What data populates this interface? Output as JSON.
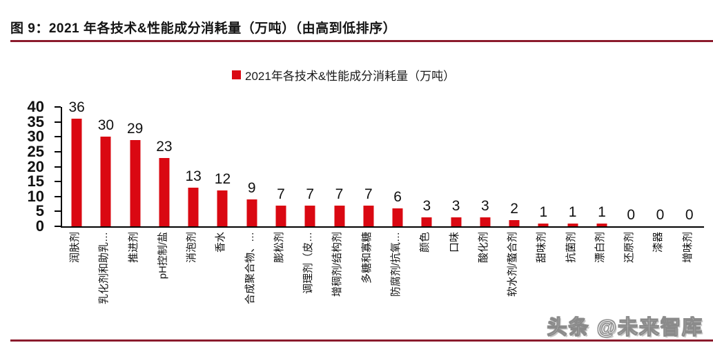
{
  "figure": {
    "title": "图 9：2021 年各技术&性能成分消耗量（万吨）（由高到低排序）",
    "watermark": "头条 @未来智库"
  },
  "colors": {
    "bar": "#da0812",
    "rule": "#8b1b2c",
    "axis": "#000000",
    "text": "#1a1a1a"
  },
  "chart_data": {
    "type": "bar",
    "title": "",
    "legend": [
      "2021年各技术&性能成分消耗量（万吨）"
    ],
    "legend_position": "top-center",
    "categories": [
      "润肤剂",
      "乳化剂和助乳…",
      "推进剂",
      "pH控制/盐",
      "消泡剂",
      "香水",
      "合成聚合物、…",
      "膨松剂",
      "调理剂（皮…",
      "增稠剂/结构剂",
      "多糖和寡糖",
      "防腐剂/抗氧…",
      "颜色",
      "口味",
      "酸化剂",
      "软水剂/螯合剂",
      "甜味剂",
      "抗菌剂",
      "漂白剂",
      "还原剂",
      "漆器",
      "增味剂"
    ],
    "values": [
      36,
      30,
      29,
      23,
      13,
      12,
      9,
      7,
      7,
      7,
      7,
      6,
      3,
      3,
      3,
      2,
      1,
      1,
      1,
      0,
      0,
      0
    ],
    "xlabel": "",
    "ylabel": "",
    "ylim": [
      0,
      40
    ],
    "y_ticks": [
      0,
      5,
      10,
      15,
      20,
      25,
      30,
      35,
      40
    ],
    "grid": false,
    "data_labels": true,
    "bar_orientation": "vertical",
    "sort_order": "descending"
  }
}
